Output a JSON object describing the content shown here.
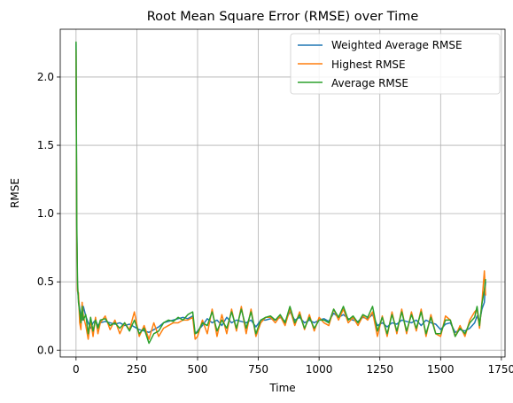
{
  "chart_data": {
    "type": "line",
    "title": "Root Mean Square Error (RMSE) over Time",
    "xlabel": "Time",
    "ylabel": "RMSE",
    "xlim": [
      -65,
      1765
    ],
    "ylim": [
      -0.05,
      2.35
    ],
    "xticks": [
      0,
      250,
      500,
      750,
      1000,
      1250,
      1500,
      1750
    ],
    "xtick_labels": [
      "0",
      "250",
      "500",
      "750",
      "1000",
      "1250",
      "1500",
      "1750"
    ],
    "yticks": [
      0.0,
      0.5,
      1.0,
      1.5,
      2.0
    ],
    "ytick_labels": [
      "0.0",
      "0.5",
      "1.0",
      "1.5",
      "2.0"
    ],
    "grid": true,
    "legend_position": "top-right",
    "series": [
      {
        "name": "Weighted Average RMSE",
        "color": "#1f77b4",
        "x": [
          0,
          3,
          6,
          10,
          15,
          20,
          25,
          30,
          40,
          50,
          60,
          70,
          80,
          90,
          100,
          120,
          140,
          160,
          180,
          200,
          220,
          240,
          260,
          280,
          300,
          320,
          340,
          360,
          380,
          400,
          420,
          440,
          460,
          480,
          490,
          500,
          520,
          540,
          560,
          580,
          600,
          620,
          640,
          660,
          680,
          700,
          720,
          740,
          760,
          780,
          800,
          820,
          840,
          860,
          880,
          900,
          920,
          940,
          960,
          980,
          1000,
          1020,
          1040,
          1060,
          1080,
          1100,
          1120,
          1140,
          1160,
          1180,
          1200,
          1220,
          1240,
          1260,
          1280,
          1300,
          1320,
          1340,
          1360,
          1380,
          1400,
          1420,
          1440,
          1460,
          1480,
          1500,
          1520,
          1540,
          1560,
          1580,
          1600,
          1620,
          1640,
          1650,
          1660,
          1670,
          1680,
          1685
        ],
        "y": [
          2.25,
          0.9,
          0.45,
          0.38,
          0.3,
          0.25,
          0.22,
          0.32,
          0.25,
          0.2,
          0.16,
          0.2,
          0.22,
          0.18,
          0.2,
          0.21,
          0.2,
          0.19,
          0.2,
          0.18,
          0.19,
          0.17,
          0.15,
          0.14,
          0.13,
          0.15,
          0.17,
          0.2,
          0.21,
          0.22,
          0.23,
          0.24,
          0.23,
          0.25,
          0.12,
          0.14,
          0.18,
          0.23,
          0.2,
          0.22,
          0.18,
          0.24,
          0.2,
          0.22,
          0.21,
          0.2,
          0.22,
          0.17,
          0.22,
          0.22,
          0.23,
          0.22,
          0.24,
          0.21,
          0.28,
          0.22,
          0.24,
          0.2,
          0.22,
          0.2,
          0.22,
          0.23,
          0.21,
          0.27,
          0.24,
          0.26,
          0.23,
          0.22,
          0.21,
          0.24,
          0.23,
          0.26,
          0.18,
          0.2,
          0.17,
          0.2,
          0.19,
          0.22,
          0.21,
          0.2,
          0.22,
          0.18,
          0.22,
          0.2,
          0.19,
          0.15,
          0.19,
          0.2,
          0.13,
          0.15,
          0.14,
          0.16,
          0.2,
          0.25,
          0.2,
          0.3,
          0.35,
          0.5
        ]
      },
      {
        "name": "Highest RMSE",
        "color": "#ff7f0e",
        "x": [
          0,
          3,
          6,
          10,
          15,
          20,
          25,
          30,
          40,
          50,
          60,
          70,
          80,
          90,
          100,
          120,
          140,
          160,
          180,
          200,
          220,
          240,
          260,
          280,
          300,
          320,
          340,
          360,
          380,
          400,
          420,
          440,
          460,
          480,
          490,
          500,
          520,
          540,
          560,
          580,
          600,
          620,
          640,
          660,
          680,
          700,
          720,
          740,
          760,
          780,
          800,
          820,
          840,
          860,
          880,
          900,
          920,
          940,
          960,
          980,
          1000,
          1020,
          1040,
          1060,
          1080,
          1100,
          1120,
          1140,
          1160,
          1180,
          1200,
          1220,
          1240,
          1260,
          1280,
          1300,
          1320,
          1340,
          1360,
          1380,
          1400,
          1420,
          1440,
          1460,
          1480,
          1500,
          1520,
          1540,
          1560,
          1580,
          1600,
          1620,
          1640,
          1650,
          1660,
          1670,
          1680,
          1685
        ],
        "y": [
          2.2,
          0.85,
          0.43,
          0.42,
          0.2,
          0.15,
          0.35,
          0.25,
          0.18,
          0.08,
          0.22,
          0.1,
          0.24,
          0.12,
          0.2,
          0.25,
          0.15,
          0.22,
          0.12,
          0.2,
          0.15,
          0.28,
          0.1,
          0.18,
          0.08,
          0.2,
          0.1,
          0.16,
          0.18,
          0.2,
          0.2,
          0.22,
          0.22,
          0.24,
          0.08,
          0.1,
          0.22,
          0.12,
          0.3,
          0.1,
          0.26,
          0.12,
          0.3,
          0.14,
          0.32,
          0.12,
          0.3,
          0.1,
          0.2,
          0.24,
          0.24,
          0.2,
          0.25,
          0.18,
          0.3,
          0.18,
          0.28,
          0.15,
          0.26,
          0.14,
          0.24,
          0.2,
          0.18,
          0.3,
          0.22,
          0.3,
          0.2,
          0.24,
          0.18,
          0.25,
          0.22,
          0.28,
          0.1,
          0.25,
          0.1,
          0.28,
          0.12,
          0.3,
          0.12,
          0.28,
          0.14,
          0.3,
          0.1,
          0.26,
          0.12,
          0.1,
          0.25,
          0.22,
          0.1,
          0.18,
          0.1,
          0.22,
          0.28,
          0.3,
          0.16,
          0.35,
          0.58,
          0.4
        ]
      },
      {
        "name": "Average RMSE",
        "color": "#2ca02c",
        "x": [
          0,
          3,
          6,
          10,
          15,
          20,
          25,
          30,
          40,
          50,
          60,
          70,
          80,
          90,
          100,
          120,
          140,
          160,
          180,
          200,
          220,
          240,
          260,
          280,
          300,
          320,
          340,
          360,
          380,
          400,
          420,
          440,
          460,
          480,
          490,
          500,
          520,
          540,
          560,
          580,
          600,
          620,
          640,
          660,
          680,
          700,
          720,
          740,
          760,
          780,
          800,
          820,
          840,
          860,
          880,
          900,
          920,
          940,
          960,
          980,
          1000,
          1020,
          1040,
          1060,
          1080,
          1100,
          1120,
          1140,
          1160,
          1180,
          1200,
          1220,
          1240,
          1260,
          1280,
          1300,
          1320,
          1340,
          1360,
          1380,
          1400,
          1420,
          1440,
          1460,
          1480,
          1500,
          1520,
          1540,
          1560,
          1580,
          1600,
          1620,
          1640,
          1650,
          1660,
          1670,
          1680,
          1685
        ],
        "y": [
          2.26,
          0.95,
          0.5,
          0.35,
          0.28,
          0.2,
          0.32,
          0.22,
          0.26,
          0.12,
          0.24,
          0.14,
          0.22,
          0.16,
          0.22,
          0.23,
          0.18,
          0.2,
          0.16,
          0.2,
          0.14,
          0.22,
          0.12,
          0.16,
          0.05,
          0.12,
          0.14,
          0.2,
          0.22,
          0.21,
          0.24,
          0.22,
          0.26,
          0.28,
          0.12,
          0.13,
          0.2,
          0.18,
          0.28,
          0.14,
          0.22,
          0.16,
          0.28,
          0.16,
          0.3,
          0.16,
          0.28,
          0.12,
          0.22,
          0.24,
          0.25,
          0.22,
          0.26,
          0.2,
          0.32,
          0.2,
          0.26,
          0.16,
          0.24,
          0.16,
          0.22,
          0.22,
          0.2,
          0.3,
          0.24,
          0.32,
          0.22,
          0.25,
          0.2,
          0.26,
          0.24,
          0.32,
          0.14,
          0.24,
          0.12,
          0.26,
          0.14,
          0.28,
          0.14,
          0.26,
          0.16,
          0.28,
          0.12,
          0.24,
          0.12,
          0.12,
          0.22,
          0.22,
          0.1,
          0.16,
          0.12,
          0.2,
          0.24,
          0.32,
          0.18,
          0.34,
          0.44,
          0.52
        ]
      }
    ]
  }
}
